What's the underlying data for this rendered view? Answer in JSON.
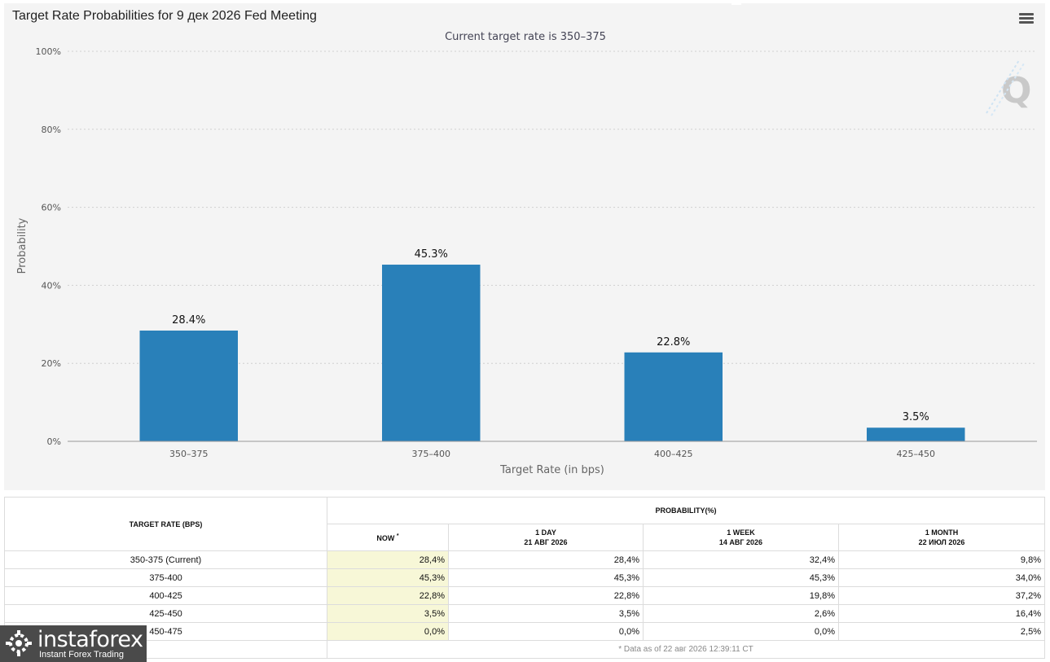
{
  "chart_title": "Target Rate Probabilities for 9 дек 2026 Fed Meeting",
  "menu_icon": "hamburger-menu-icon",
  "watermark_icon": "q-logo-icon",
  "chart_data": {
    "type": "bar",
    "title": "Target Rate Probabilities for 9 дек 2026 Fed Meeting",
    "subtitle": "Current target rate is 350–375",
    "categories": [
      "350–375",
      "375–400",
      "400–425",
      "425–450"
    ],
    "values": [
      28.4,
      45.3,
      22.8,
      3.5
    ],
    "data_labels": [
      "28.4%",
      "45.3%",
      "22.8%",
      "3.5%"
    ],
    "xlabel": "Target Rate (in bps)",
    "ylabel": "Probability",
    "ylim": [
      0,
      100
    ],
    "yticks": [
      0,
      20,
      40,
      60,
      80,
      100
    ],
    "ytick_labels": [
      "0%",
      "20%",
      "40%",
      "60%",
      "80%",
      "100%"
    ],
    "grid": true,
    "bar_color": "#2980b9"
  },
  "table": {
    "col_rate": "TARGET RATE (BPS)",
    "col_prob": "PROBABILITY(%)",
    "col_now": "NOW",
    "now_mark": "*",
    "col_day_title": "1 DAY",
    "col_day_date": "21 АВГ 2026",
    "col_week_title": "1 WEEK",
    "col_week_date": "14 АВГ 2026",
    "col_month_title": "1 MONTH",
    "col_month_date": "22 ИЮЛ 2026",
    "rows": [
      {
        "rate": "350-375 (Current)",
        "now": "28,4%",
        "day": "28,4%",
        "week": "32,4%",
        "month": "9,8%"
      },
      {
        "rate": "375-400",
        "now": "45,3%",
        "day": "45,3%",
        "week": "45,3%",
        "month": "34,0%"
      },
      {
        "rate": "400-425",
        "now": "22,8%",
        "day": "22,8%",
        "week": "19,8%",
        "month": "37,2%"
      },
      {
        "rate": "425-450",
        "now": "3,5%",
        "day": "3,5%",
        "week": "2,6%",
        "month": "16,4%"
      },
      {
        "rate": "450-475",
        "now": "0,0%",
        "day": "0,0%",
        "week": "0,0%",
        "month": "2,5%"
      }
    ],
    "footnote": "* Data as of 22 авг 2026 12:39:11 CT"
  },
  "logo": {
    "name": "instaforex",
    "tagline": "Instant Forex Trading",
    "icon": "instaforex-logo-icon"
  },
  "colors": {
    "bar": "#2980b9",
    "now_highlight": "#f7f7d7",
    "panel_bg": "#f4f4f4"
  }
}
